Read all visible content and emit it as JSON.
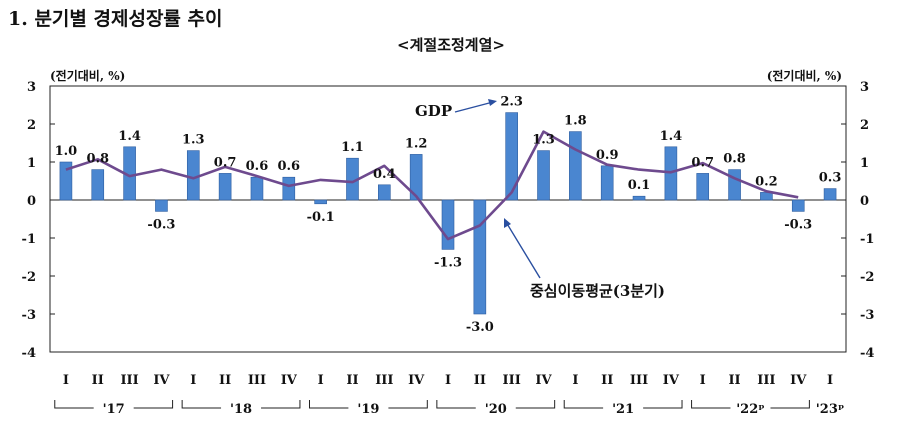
{
  "title": "1. 분기별 경제성장률 추이",
  "chart_data": {
    "type": "bar",
    "subtitle": "<계절조정계열>",
    "unit_left": "(전기대비, %)",
    "unit_right": "(전기대비, %)",
    "ylim": [
      -4,
      3
    ],
    "yticks": [
      "3",
      "2",
      "1",
      "0",
      "-1",
      "-2",
      "-3",
      "-4"
    ],
    "categories": [
      "I",
      "II",
      "III",
      "IV",
      "I",
      "II",
      "III",
      "IV",
      "I",
      "II",
      "III",
      "IV",
      "I",
      "II",
      "III",
      "IV",
      "I",
      "II",
      "III",
      "IV",
      "I",
      "II",
      "III",
      "IV",
      "I"
    ],
    "year_groups": [
      {
        "label": "'17",
        "start": 0,
        "end": 3
      },
      {
        "label": "'18",
        "start": 4,
        "end": 7
      },
      {
        "label": "'19",
        "start": 8,
        "end": 11
      },
      {
        "label": "'20",
        "start": 12,
        "end": 15
      },
      {
        "label": "'21",
        "start": 16,
        "end": 19
      },
      {
        "label": "'22ᵖ",
        "start": 20,
        "end": 23
      },
      {
        "label": "'23ᵖ",
        "start": 24,
        "end": 24
      }
    ],
    "series": [
      {
        "name": "GDP",
        "type": "bar",
        "color": "#4a86d0",
        "values": [
          1.0,
          0.8,
          1.4,
          -0.3,
          1.3,
          0.7,
          0.6,
          0.6,
          -0.1,
          1.1,
          0.4,
          1.2,
          -1.3,
          -3.0,
          2.3,
          1.3,
          1.8,
          0.9,
          0.1,
          1.4,
          0.7,
          0.8,
          0.2,
          -0.3,
          0.3
        ],
        "labels": [
          "1.0",
          "0.8",
          "1.4",
          "-0.3",
          "1.3",
          "0.7",
          "0.6",
          "0.6",
          "-0.1",
          "1.1",
          "0.4",
          "1.2",
          "-1.3",
          "-3.0",
          "2.3",
          "1.3",
          "1.8",
          "0.9",
          "0.1",
          "1.4",
          "0.7",
          "0.8",
          "0.2",
          "-0.3",
          "0.3"
        ]
      },
      {
        "name": "중심이동평균(3분기)",
        "type": "line",
        "color": "#6e4a8e",
        "values": [
          0.8,
          1.07,
          0.63,
          0.8,
          0.57,
          0.87,
          0.63,
          0.37,
          0.53,
          0.47,
          0.9,
          0.1,
          -1.03,
          -0.67,
          0.2,
          1.8,
          1.33,
          0.93,
          0.8,
          0.73,
          0.97,
          0.57,
          0.23,
          0.07,
          null
        ]
      }
    ],
    "annotations": [
      "GDP",
      "중심이동평균(3분기)"
    ]
  }
}
